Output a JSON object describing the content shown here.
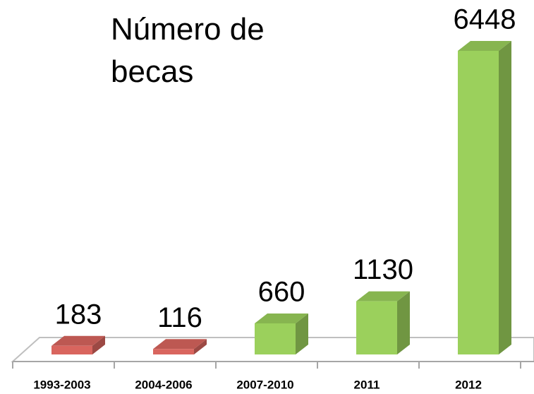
{
  "chart_data": {
    "type": "bar3d",
    "title": "Número de becas",
    "categories": [
      "1993-2003",
      "2004-2006",
      "2007-2010",
      "2011",
      "2012"
    ],
    "values": [
      183,
      116,
      660,
      1130,
      6448
    ],
    "colors": [
      "#d9655e",
      "#d9655e",
      "#9bd05c",
      "#9bd05c",
      "#9bd05c"
    ]
  }
}
